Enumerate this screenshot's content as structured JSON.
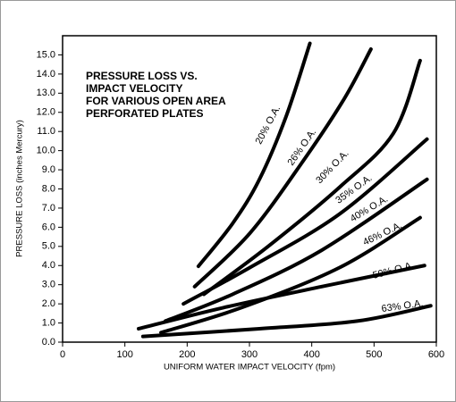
{
  "chart_data": {
    "type": "line",
    "title": [
      "PRESSURE LOSS VS.",
      "IMPACT VELOCITY",
      "FOR VARIOUS OPEN AREA",
      "PERFORATED PLATES"
    ],
    "xlabel": "UNIFORM WATER IMPACT VELOCITY (fpm)",
    "ylabel": "PRESSURE LOSS (inches Mercury)",
    "xlim": [
      0,
      600
    ],
    "xticks": [
      0,
      100,
      200,
      300,
      400,
      500,
      600
    ],
    "ylim": [
      0,
      16
    ],
    "yticks": [
      {
        "value": 0,
        "label": "0.0"
      },
      {
        "value": 1,
        "label": "1.0"
      },
      {
        "value": 2,
        "label": "2.0"
      },
      {
        "value": 3,
        "label": "3.0"
      },
      {
        "value": 4,
        "label": "4.0"
      },
      {
        "value": 5,
        "label": "5.0"
      },
      {
        "value": 6,
        "label": "6.0"
      },
      {
        "value": 7,
        "label": "7.0"
      },
      {
        "value": 8,
        "label": "8.0"
      },
      {
        "value": 9,
        "label": "9.0"
      },
      {
        "value": 10,
        "label": "10.0"
      },
      {
        "value": 11,
        "label": "11.0"
      },
      {
        "value": 12,
        "label": "12.0"
      },
      {
        "value": 13,
        "label": "13.0"
      },
      {
        "value": 14,
        "label": "14.0"
      },
      {
        "value": 15,
        "label": "15.0"
      }
    ],
    "series": [
      {
        "name": "20% O.A.",
        "color": "#000000",
        "x": [
          218,
          273,
          316,
          359,
          397
        ],
        "values": [
          3.96,
          6.2,
          8.5,
          11.8,
          15.6
        ]
      },
      {
        "name": "26% O.A.",
        "color": "#000000",
        "x": [
          212,
          301,
          387,
          452,
          495
        ],
        "values": [
          2.9,
          5.7,
          9.5,
          12.7,
          15.3
        ]
      },
      {
        "name": "30% O.A.",
        "color": "#000000",
        "x": [
          227,
          330,
          445,
          531,
          574
        ],
        "values": [
          2.5,
          5.0,
          8.1,
          10.9,
          14.7
        ]
      },
      {
        "name": "35% O.A.",
        "color": "#000000",
        "x": [
          194,
          301,
          445,
          585
        ],
        "values": [
          2.0,
          3.9,
          6.7,
          10.6
        ]
      },
      {
        "name": "40% O.A.",
        "color": "#000000",
        "x": [
          165,
          273,
          416,
          585
        ],
        "values": [
          1.1,
          2.5,
          4.8,
          8.5
        ]
      },
      {
        "name": "46% O.A.",
        "color": "#000000",
        "x": [
          158,
          287,
          445,
          574
        ],
        "values": [
          0.5,
          1.8,
          3.9,
          6.5
        ]
      },
      {
        "name": "50% O.A.",
        "color": "#000000",
        "x": [
          122,
          258,
          416,
          581
        ],
        "values": [
          0.7,
          1.8,
          2.9,
          4.0
        ]
      },
      {
        "name": "63% O.A.",
        "color": "#000000",
        "x": [
          129,
          316,
          473,
          591
        ],
        "values": [
          0.3,
          0.7,
          1.1,
          1.9
        ]
      }
    ]
  }
}
